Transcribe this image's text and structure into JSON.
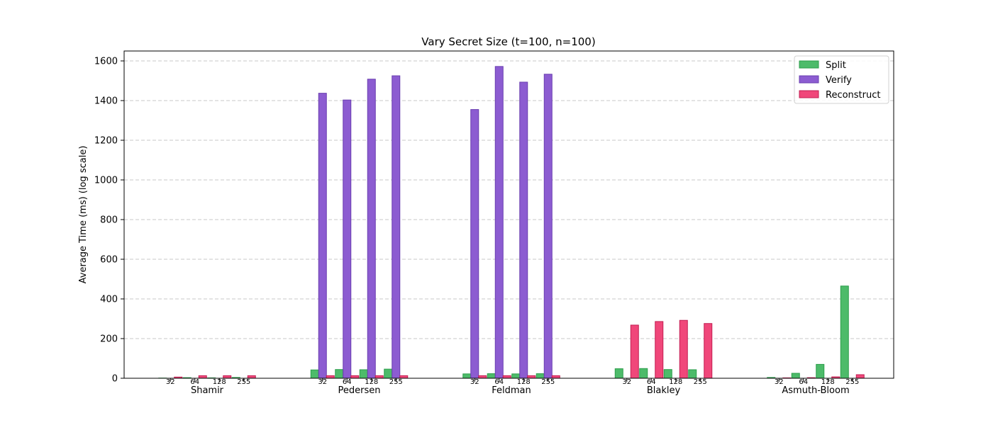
{
  "chart_data": {
    "type": "bar",
    "title": "Vary Secret Size (t=100, n=100)",
    "xlabel": "",
    "ylabel": "Average Time (ms) (log scale)",
    "ylim": [
      0,
      1650
    ],
    "yticks": [
      0,
      200,
      400,
      600,
      800,
      1000,
      1200,
      1400,
      1600
    ],
    "grid": true,
    "legend_position": "top-right",
    "colors": {
      "Split": "#4dbb6a",
      "Verify": "#8c5cd1",
      "Reconstruct": "#f0477a"
    },
    "edge_colors": {
      "Split": "#2c9e4b",
      "Verify": "#6a3fb0",
      "Reconstruct": "#c21e52"
    },
    "groups": [
      "Shamir",
      "Pedersen",
      "Feldman",
      "Blakley",
      "Asmuth-Bloom"
    ],
    "secret_sizes": [
      "32",
      "64",
      "128",
      "255"
    ],
    "series": [
      {
        "name": "Split",
        "values": [
          [
            1,
            3,
            2,
            4
          ],
          [
            42,
            44,
            43,
            46
          ],
          [
            22,
            23,
            22,
            23
          ],
          [
            48,
            49,
            44,
            43
          ],
          [
            4,
            25,
            70,
            465
          ]
        ]
      },
      {
        "name": "Verify",
        "values": [
          [
            0,
            0,
            0,
            0
          ],
          [
            1437,
            1403,
            1508,
            1525
          ],
          [
            1355,
            1572,
            1493,
            1533
          ],
          [
            0,
            0,
            0,
            0
          ],
          [
            0,
            0,
            0,
            0
          ]
        ]
      },
      {
        "name": "Reconstruct",
        "values": [
          [
            6,
            13,
            13,
            13
          ],
          [
            13,
            13,
            13,
            13
          ],
          [
            13,
            13,
            13,
            13
          ],
          [
            268,
            286,
            292,
            276
          ],
          [
            2,
            3,
            7,
            18
          ]
        ]
      }
    ]
  }
}
